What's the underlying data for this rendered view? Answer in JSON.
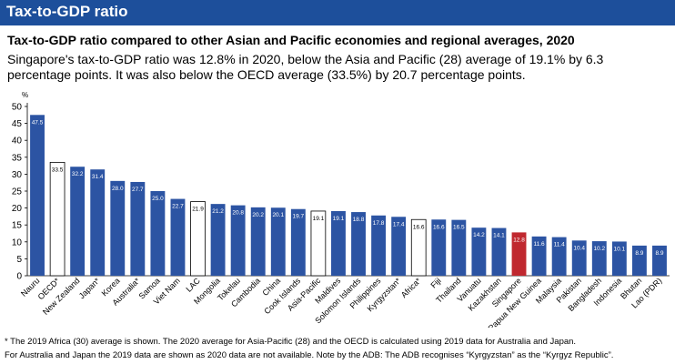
{
  "banner": {
    "title": "Tax-to-GDP ratio"
  },
  "subtitle": "Tax-to-GDP ratio compared to other Asian and Pacific economies and regional averages, 2020",
  "description": "Singapore's tax-to-GDP ratio was 12.8% in 2020, below the Asia and Pacific (28) average of 19.1% by 6.3 percentage points. It was also below the OECD average (33.5%) by 20.7 percentage points.",
  "footnotes": [
    "* The 2019 Africa (30) average is shown. The 2020 average for Asia-Pacific (28) and the OECD is calculated using 2019 data for Australia and Japan.",
    "For Australia and Japan the 2019 data are shown as 2020 data are not available. Note by the ADB: The ADB recognises “Kyrgyzstan” as the “Kyrgyz Republic”."
  ],
  "colors": {
    "banner": "#1d4f9b",
    "bar": "#2c54a3",
    "highlight": "#c0282f",
    "average": "#ffffff"
  },
  "chart_data": {
    "type": "bar",
    "ylabel": "%",
    "ylim": [
      0,
      50
    ],
    "yticks": [
      0,
      5,
      10,
      15,
      20,
      25,
      30,
      35,
      40,
      45,
      50
    ],
    "grid": false,
    "categories": [
      "Nauru",
      "OECD*",
      "New Zealand",
      "Japan*",
      "Korea",
      "Australia*",
      "Samoa",
      "Viet Nam",
      "LAC",
      "Mongolia",
      "Tokelau",
      "Cambodia",
      "China",
      "Cook Islands",
      "Asia-Pacific",
      "Maldives",
      "Solomon Islands",
      "Philippines",
      "Kyrgyzstan*",
      "Africa*",
      "Fiji",
      "Thailand",
      "Vanuatu",
      "Kazakhstan",
      "Singapore",
      "Papua New Guinea",
      "Malaysia",
      "Pakistan",
      "Bangladesh",
      "Indonesia",
      "Bhutan",
      "Lao (PDR)"
    ],
    "values": [
      47.5,
      33.5,
      32.2,
      31.4,
      28.0,
      27.7,
      25.0,
      22.7,
      21.9,
      21.2,
      20.8,
      20.2,
      20.1,
      19.7,
      19.1,
      19.1,
      18.8,
      17.8,
      17.4,
      16.6,
      16.6,
      16.5,
      14.2,
      14.1,
      12.8,
      11.6,
      11.4,
      10.4,
      10.2,
      10.1,
      8.9,
      8.9
    ],
    "value_labels": [
      "47.5",
      "33.5",
      "32.2",
      "31.4",
      "28.0",
      "27.7",
      "25.0",
      "22.7",
      "21.9",
      "21.2",
      "20.8",
      "20.2",
      "20.1",
      "19.7",
      "19.1",
      "19.1",
      "18.8",
      "17.8",
      "17.4",
      "16.6",
      "16.6",
      "16.5",
      "14.2",
      "14.1",
      "12.8",
      "11.6",
      "11.4",
      "10.4",
      "10.2",
      "10.1",
      "8.9",
      "8.9"
    ],
    "bar_kind": [
      "country",
      "average",
      "country",
      "country",
      "country",
      "country",
      "country",
      "country",
      "average",
      "country",
      "country",
      "country",
      "country",
      "country",
      "average",
      "country",
      "country",
      "country",
      "country",
      "average",
      "country",
      "country",
      "country",
      "country",
      "highlight",
      "country",
      "country",
      "country",
      "country",
      "country",
      "country",
      "country"
    ]
  }
}
